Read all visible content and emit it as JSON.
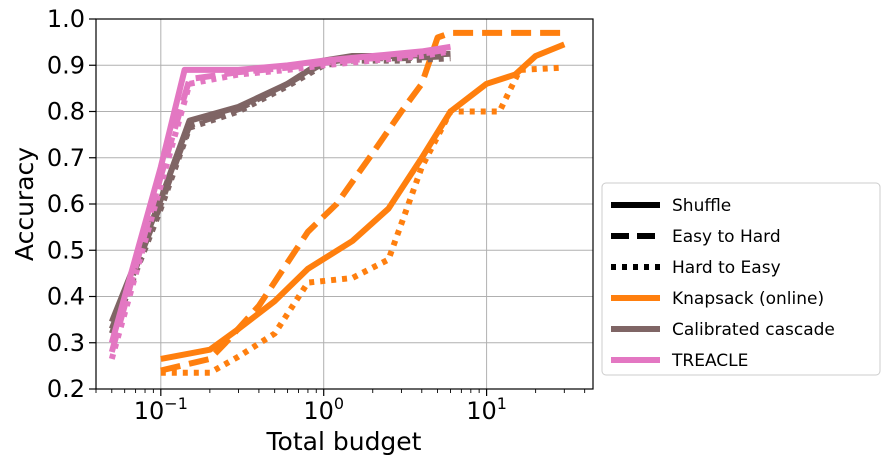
{
  "chart_data": {
    "type": "line",
    "xlabel": "Total budget",
    "ylabel": "Accuracy",
    "xscale": "log",
    "xlim": [
      0.04,
      45
    ],
    "ylim": [
      0.2,
      1.0
    ],
    "x_ticks": [
      {
        "value": 0.1,
        "base": "10",
        "exp": "−1"
      },
      {
        "value": 1,
        "base": "10",
        "exp": "0"
      },
      {
        "value": 10,
        "base": "10",
        "exp": "1"
      }
    ],
    "y_ticks": [
      0.2,
      0.3,
      0.4,
      0.5,
      0.6,
      0.7,
      0.8,
      0.9,
      1.0
    ],
    "y_tick_labels": [
      "0.2",
      "0.3",
      "0.4",
      "0.5",
      "0.6",
      "0.7",
      "0.8",
      "0.9",
      "1.0"
    ],
    "grid": true,
    "legend_position": "right, outside",
    "colors": {
      "knapsack": "#ff7f0e",
      "calibrated": "#7f6565",
      "treacle": "#e377c2",
      "black": "#000000"
    },
    "legend": [
      {
        "label": "Shuffle",
        "style": "solid",
        "color": "#000000"
      },
      {
        "label": "Easy to Hard",
        "style": "dashed",
        "color": "#000000"
      },
      {
        "label": "Hard to Easy",
        "style": "dotted",
        "color": "#000000"
      },
      {
        "label": "Knapsack (online)",
        "style": "solid",
        "color": "#ff7f0e"
      },
      {
        "label": "Calibrated cascade",
        "style": "solid",
        "color": "#7f6565"
      },
      {
        "label": "TREACLE",
        "style": "solid",
        "color": "#e377c2"
      }
    ],
    "series": [
      {
        "method": "Knapsack (online)",
        "order": "Shuffle",
        "color": "#ff7f0e",
        "style": "solid",
        "points": [
          [
            0.1,
            0.265
          ],
          [
            0.2,
            0.285
          ],
          [
            0.3,
            0.33
          ],
          [
            0.5,
            0.39
          ],
          [
            0.8,
            0.46
          ],
          [
            1.5,
            0.52
          ],
          [
            2.5,
            0.59
          ],
          [
            4,
            0.7
          ],
          [
            6,
            0.8
          ],
          [
            10,
            0.86
          ],
          [
            15,
            0.88
          ],
          [
            20,
            0.92
          ],
          [
            30,
            0.945
          ]
        ]
      },
      {
        "method": "Knapsack (online)",
        "order": "Easy to Hard",
        "color": "#ff7f0e",
        "style": "dashed",
        "points": [
          [
            0.1,
            0.24
          ],
          [
            0.2,
            0.265
          ],
          [
            0.25,
            0.3
          ],
          [
            0.4,
            0.38
          ],
          [
            0.8,
            0.54
          ],
          [
            1.2,
            0.6
          ],
          [
            2,
            0.71
          ],
          [
            3,
            0.8
          ],
          [
            4,
            0.86
          ],
          [
            5,
            0.96
          ],
          [
            6,
            0.97
          ],
          [
            30,
            0.97
          ]
        ]
      },
      {
        "method": "Knapsack (online)",
        "order": "Hard to Easy",
        "color": "#ff7f0e",
        "style": "dotted",
        "points": [
          [
            0.1,
            0.235
          ],
          [
            0.2,
            0.235
          ],
          [
            0.3,
            0.27
          ],
          [
            0.5,
            0.32
          ],
          [
            0.8,
            0.43
          ],
          [
            1.5,
            0.44
          ],
          [
            2.5,
            0.48
          ],
          [
            4,
            0.68
          ],
          [
            6,
            0.8
          ],
          [
            12,
            0.8
          ],
          [
            16,
            0.89
          ],
          [
            30,
            0.895
          ]
        ]
      },
      {
        "method": "Calibrated cascade",
        "order": "Shuffle",
        "color": "#7f6565",
        "style": "solid",
        "points": [
          [
            0.05,
            0.345
          ],
          [
            0.1,
            0.61
          ],
          [
            0.15,
            0.78
          ],
          [
            0.3,
            0.81
          ],
          [
            0.6,
            0.86
          ],
          [
            1,
            0.91
          ],
          [
            1.5,
            0.92
          ],
          [
            3,
            0.92
          ],
          [
            6,
            0.925
          ]
        ]
      },
      {
        "method": "Calibrated cascade",
        "order": "Easy to Hard",
        "color": "#7f6565",
        "style": "dashed",
        "points": [
          [
            0.05,
            0.33
          ],
          [
            0.1,
            0.6
          ],
          [
            0.15,
            0.77
          ],
          [
            0.3,
            0.805
          ],
          [
            0.6,
            0.86
          ],
          [
            1,
            0.905
          ],
          [
            1.5,
            0.915
          ],
          [
            3,
            0.915
          ],
          [
            6,
            0.92
          ]
        ]
      },
      {
        "method": "Calibrated cascade",
        "order": "Hard to Easy",
        "color": "#7f6565",
        "style": "dotted",
        "points": [
          [
            0.05,
            0.32
          ],
          [
            0.1,
            0.59
          ],
          [
            0.15,
            0.765
          ],
          [
            0.3,
            0.8
          ],
          [
            0.6,
            0.855
          ],
          [
            1,
            0.9
          ],
          [
            1.5,
            0.91
          ],
          [
            3,
            0.91
          ],
          [
            6,
            0.915
          ]
        ]
      },
      {
        "method": "TREACLE",
        "order": "Shuffle",
        "color": "#e377c2",
        "style": "solid",
        "points": [
          [
            0.05,
            0.3
          ],
          [
            0.1,
            0.68
          ],
          [
            0.14,
            0.89
          ],
          [
            0.3,
            0.89
          ],
          [
            0.6,
            0.9
          ],
          [
            1,
            0.91
          ],
          [
            2,
            0.92
          ],
          [
            4,
            0.93
          ],
          [
            6,
            0.94
          ]
        ]
      },
      {
        "method": "TREACLE",
        "order": "Easy to Hard",
        "color": "#e377c2",
        "style": "dashed",
        "points": [
          [
            0.05,
            0.28
          ],
          [
            0.1,
            0.66
          ],
          [
            0.15,
            0.87
          ],
          [
            0.3,
            0.885
          ],
          [
            0.6,
            0.895
          ],
          [
            1,
            0.905
          ],
          [
            2,
            0.915
          ],
          [
            4,
            0.925
          ],
          [
            6,
            0.935
          ]
        ]
      },
      {
        "method": "TREACLE",
        "order": "Hard to Easy",
        "color": "#e377c2",
        "style": "dotted",
        "points": [
          [
            0.05,
            0.265
          ],
          [
            0.1,
            0.64
          ],
          [
            0.15,
            0.86
          ],
          [
            0.3,
            0.88
          ],
          [
            0.6,
            0.89
          ],
          [
            1,
            0.9
          ],
          [
            2,
            0.91
          ],
          [
            4,
            0.92
          ],
          [
            6,
            0.93
          ]
        ]
      }
    ]
  }
}
